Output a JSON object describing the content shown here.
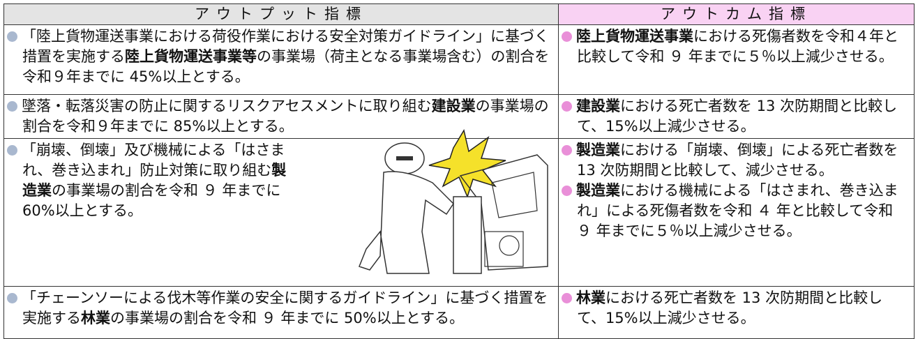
{
  "table": {
    "headers": [
      "アウトプット指標",
      "アウトカム指標"
    ],
    "rows": [
      {
        "output": [
          [
            {
              "text": "「陸上貨物運送事業における荷役作業における安全対策ガイドライン」に基づく措置を実施する",
              "bold": false
            },
            {
              "text": "陸上貨物運送事業等",
              "bold": true
            },
            {
              "text": "の事業場（荷主となる事業場含む）の割合を令和９年までに 45%以上とする。",
              "bold": false
            }
          ]
        ],
        "outcome": [
          [
            {
              "text": "陸上貨物運送事業",
              "bold": true
            },
            {
              "text": "における死傷者数を令和４年と比較して令和 ９ 年までに５％以上減少させる。",
              "bold": false
            }
          ]
        ]
      },
      {
        "output": [
          [
            {
              "text": "墜落・転落災害の防止に関するリスクアセスメントに取り組む",
              "bold": false
            },
            {
              "text": "建設業",
              "bold": true
            },
            {
              "text": "の事業場の割合を令和９年までに 85%以上とする。",
              "bold": false
            }
          ]
        ],
        "outcome": [
          [
            {
              "text": "建設業",
              "bold": true
            },
            {
              "text": "における死亡者数を 13 次防期間と比較して、15%以上減少させる。",
              "bold": false
            }
          ]
        ]
      },
      {
        "output": [
          [
            {
              "text": "「崩壊、倒壊」及び機械による「はさまれ、巻き込まれ」防止対策に取り組む",
              "bold": false
            },
            {
              "text": "製造業",
              "bold": true
            },
            {
              "text": "の事業場の割合を令和 ９ 年までに 60%以上とする。",
              "bold": false
            }
          ]
        ],
        "outcome": [
          [
            {
              "text": "製造業",
              "bold": true
            },
            {
              "text": "における「崩壊、倒壊」による死亡者数を 13 次防期間と比較して、減少させる。",
              "bold": false
            }
          ],
          [
            {
              "text": "製造業",
              "bold": true
            },
            {
              "text": "における機械による「はさまれ、巻き込まれ」による死傷者数を令和 ４ 年と比較して令和 ９ 年までに５％以上減少させる。",
              "bold": false
            }
          ]
        ]
      },
      {
        "output": [
          [
            {
              "text": "「チェーンソーによる伐木等作業の安全に関するガイドライン」に基づく措置を実施する",
              "bold": false
            },
            {
              "text": "林業",
              "bold": true
            },
            {
              "text": "の事業場の割合を令和 ９ 年までに 50%以上とする。",
              "bold": false
            }
          ]
        ],
        "outcome": [
          [
            {
              "text": "林業",
              "bold": true
            },
            {
              "text": "における死亡者数を 13 次防期間と比較して、15%以上減少させる。",
              "bold": false
            }
          ]
        ]
      }
    ]
  }
}
